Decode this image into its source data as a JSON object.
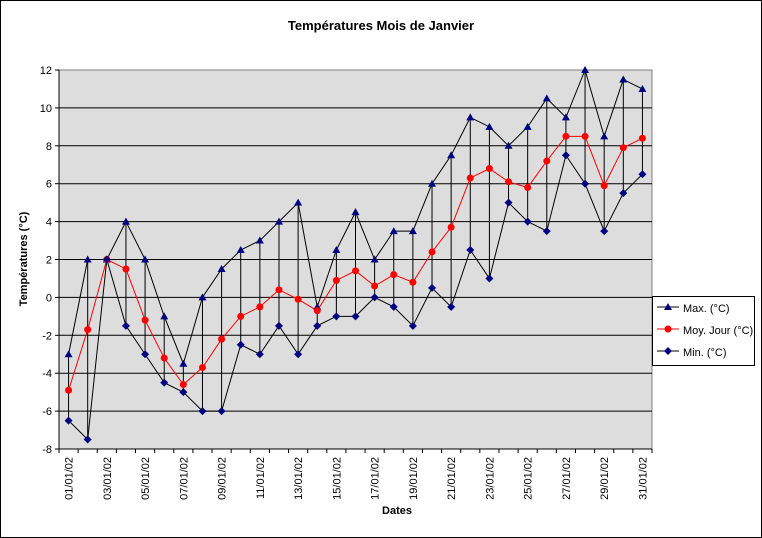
{
  "chart_data": {
    "type": "line",
    "title": "Températures Mois de Janvier",
    "xlabel": "Dates",
    "ylabel": "Températures (°C)",
    "ylim": [
      -8,
      12
    ],
    "yticks": [
      -8,
      -6,
      -4,
      -2,
      0,
      2,
      4,
      6,
      8,
      10,
      12
    ],
    "grid": true,
    "legend_position": "right",
    "plot_background": "#dddddd",
    "categories": [
      "01/01/02",
      "02/01/02",
      "03/01/02",
      "04/01/02",
      "05/01/02",
      "06/01/02",
      "07/01/02",
      "08/01/02",
      "09/01/02",
      "10/01/02",
      "11/01/02",
      "12/01/02",
      "13/01/02",
      "14/01/02",
      "15/01/02",
      "16/01/02",
      "17/01/02",
      "18/01/02",
      "19/01/02",
      "20/01/02",
      "21/01/02",
      "22/01/02",
      "23/01/02",
      "24/01/02",
      "25/01/02",
      "26/01/02",
      "27/01/02",
      "28/01/02",
      "29/01/02",
      "30/01/02",
      "31/01/02"
    ],
    "tick_labels": [
      "01/01/02",
      "03/01/02",
      "05/01/02",
      "07/01/02",
      "09/01/02",
      "11/01/02",
      "13/01/02",
      "15/01/02",
      "17/01/02",
      "19/01/02",
      "21/01/02",
      "23/01/02",
      "25/01/02",
      "27/01/02",
      "29/01/02",
      "31/01/02"
    ],
    "series": [
      {
        "name": "Max. (°C)",
        "color": "#000080",
        "line_color": "#000000",
        "marker": "triangle",
        "values": [
          -3,
          2,
          2,
          4,
          2,
          -1,
          -3.5,
          0,
          1.5,
          2.5,
          3,
          4,
          5,
          -0.5,
          2.5,
          4.5,
          2,
          3.5,
          3.5,
          6,
          7.5,
          9.5,
          9,
          8,
          9,
          10.5,
          9.5,
          12,
          8.5,
          11.5,
          11
        ]
      },
      {
        "name": "Moy. Jour (°C)",
        "color": "#ff0000",
        "line_color": "#ff0000",
        "marker": "circle",
        "values": [
          -4.9,
          -1.7,
          2,
          1.5,
          -1.2,
          -3.2,
          -4.6,
          -3.7,
          -2.2,
          -1,
          -0.5,
          0.4,
          -0.1,
          -0.7,
          0.9,
          1.4,
          0.6,
          1.2,
          0.8,
          2.4,
          3.7,
          6.3,
          6.8,
          6.1,
          5.8,
          7.2,
          8.5,
          8.5,
          5.9,
          7.9,
          8.4
        ]
      },
      {
        "name": "Min. (°C)",
        "color": "#000080",
        "line_color": "#000000",
        "marker": "diamond",
        "values": [
          -6.5,
          -7.5,
          2,
          -1.5,
          -3,
          -4.5,
          -5,
          -6,
          -6,
          -2.5,
          -3,
          -1.5,
          -3,
          -1.5,
          -1,
          -1,
          0,
          -0.5,
          -1.5,
          0.5,
          -0.5,
          2.5,
          1,
          5,
          4,
          3.5,
          7.5,
          6,
          3.5,
          5.5,
          6.5
        ]
      }
    ]
  }
}
